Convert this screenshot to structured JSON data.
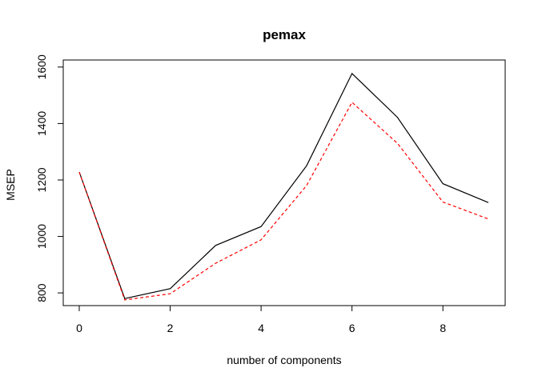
{
  "chart_data": {
    "type": "line",
    "title": "pemax",
    "xlabel": "number of components",
    "ylabel": "MSEP",
    "xlim": [
      0,
      9
    ],
    "ylim": [
      755,
      1625
    ],
    "x_ticks": [
      0,
      2,
      4,
      6,
      8
    ],
    "y_ticks": [
      800,
      1000,
      1200,
      1400,
      1600
    ],
    "x_tick_labels": [
      "0",
      "2",
      "4",
      "6",
      "8"
    ],
    "y_tick_labels": [
      "800",
      "1000",
      "1200",
      "1400",
      "1600"
    ],
    "grid": false,
    "legend": "none",
    "x": [
      0,
      1,
      2,
      3,
      4,
      5,
      6,
      7,
      8,
      9
    ],
    "series": [
      {
        "color": "#000000",
        "dash": "solid",
        "values": [
          1228,
          780,
          815,
          968,
          1035,
          1250,
          1577,
          1422,
          1187,
          1120
        ]
      },
      {
        "color": "#ff0000",
        "dash": "dashed",
        "values": [
          1228,
          775,
          797,
          905,
          988,
          1180,
          1475,
          1330,
          1122,
          1062
        ]
      }
    ]
  }
}
